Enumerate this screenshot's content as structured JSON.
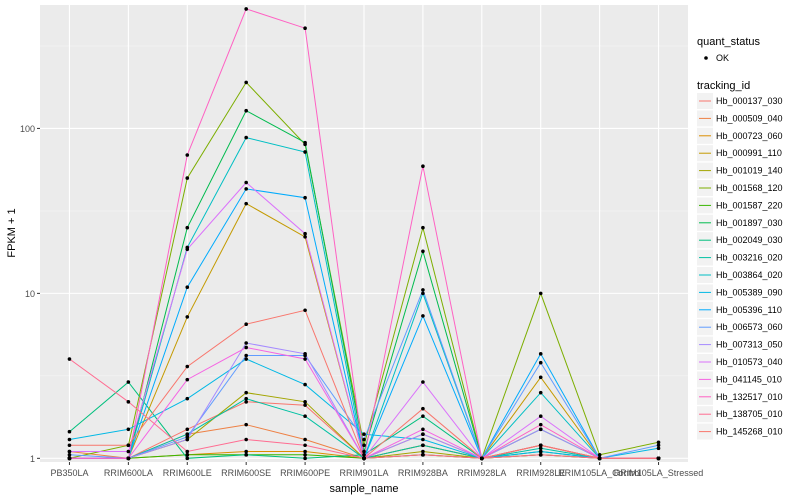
{
  "chart_data": {
    "type": "line",
    "xlabel": "sample_name",
    "ylabel": "FPKM + 1",
    "y_scale": "log10",
    "ylim": [
      0.95,
      560
    ],
    "y_ticks": [
      1,
      10,
      100
    ],
    "y_tick_labels": [
      "1",
      "10",
      "100"
    ],
    "categories": [
      "PB350LA",
      "RRIM600LA",
      "RRIM600LE",
      "RRIM600SE",
      "RRIM600PE",
      "RRIM901LA",
      "RRIM928BA",
      "RRIM928LA",
      "RRIM928LE",
      "RRIM105LA_Control",
      "RRIM105LA_Stressed"
    ],
    "background": "#EBEBEB",
    "grid": true,
    "legend_position": "right",
    "legend_shape": {
      "title": "quant_status",
      "items": [
        "OK"
      ]
    },
    "legend_color_title": "tracking_id",
    "point_color": "#000000",
    "series": [
      {
        "name": "Hb_000137_030",
        "color": "#F8766D",
        "values": [
          1.0,
          1.0,
          1.5,
          2.2,
          2.1,
          1.0,
          1.2,
          1.0,
          1.2,
          1.0,
          1.0
        ]
      },
      {
        "name": "Hb_000509_040",
        "color": "#EE8044",
        "values": [
          1.1,
          1.0,
          1.4,
          1.6,
          1.3,
          1.0,
          1.4,
          1.0,
          1.2,
          1.0,
          1.0
        ]
      },
      {
        "name": "Hb_000723_060",
        "color": "#DC8D00",
        "values": [
          1.0,
          1.0,
          1.05,
          1.1,
          1.1,
          1.0,
          1.05,
          1.0,
          1.05,
          1.0,
          1.0
        ]
      },
      {
        "name": "Hb_000991_110",
        "color": "#C49A00",
        "values": [
          1.0,
          1.0,
          7.2,
          35.0,
          22.0,
          1.0,
          1.2,
          1.0,
          3.1,
          1.0,
          1.0
        ]
      },
      {
        "name": "Hb_001019_140",
        "color": "#A3A500",
        "values": [
          1.0,
          1.0,
          1.3,
          2.5,
          2.2,
          1.0,
          1.1,
          1.0,
          1.2,
          1.0,
          1.0
        ]
      },
      {
        "name": "Hb_001568_120",
        "color": "#7CAE00",
        "values": [
          1.0,
          1.2,
          50.0,
          190.0,
          80.0,
          1.2,
          25.0,
          1.0,
          10.0,
          1.05,
          1.25
        ]
      },
      {
        "name": "Hb_001587_220",
        "color": "#39B600",
        "values": [
          1.0,
          1.0,
          1.05,
          1.05,
          1.05,
          1.0,
          1.05,
          1.0,
          1.05,
          1.0,
          1.0
        ]
      },
      {
        "name": "Hb_001897_030",
        "color": "#00BB4E",
        "values": [
          1.0,
          1.0,
          25.0,
          128.0,
          82.0,
          1.1,
          18.0,
          1.0,
          1.5,
          1.0,
          1.0
        ]
      },
      {
        "name": "Hb_002049_030",
        "color": "#00BF7D",
        "values": [
          1.45,
          2.9,
          1.0,
          1.05,
          1.0,
          1.05,
          1.8,
          1.0,
          1.1,
          1.0,
          1.0
        ]
      },
      {
        "name": "Hb_003216_020",
        "color": "#00C1A3",
        "values": [
          1.0,
          1.0,
          1.4,
          2.3,
          1.8,
          1.0,
          1.2,
          1.0,
          1.15,
          1.0,
          1.0
        ]
      },
      {
        "name": "Hb_003864_020",
        "color": "#00BFC4",
        "values": [
          1.0,
          1.0,
          19.0,
          88.0,
          72.0,
          1.0,
          10.0,
          1.0,
          2.5,
          1.0,
          1.0
        ]
      },
      {
        "name": "Hb_005389_090",
        "color": "#00B8E5",
        "values": [
          1.3,
          1.5,
          2.3,
          4.0,
          2.8,
          1.4,
          1.3,
          1.0,
          1.1,
          1.0,
          1.15
        ]
      },
      {
        "name": "Hb_005396_110",
        "color": "#00ABFD",
        "values": [
          1.0,
          1.0,
          10.9,
          43.0,
          38.0,
          1.0,
          7.3,
          1.0,
          4.3,
          1.0,
          1.0
        ]
      },
      {
        "name": "Hb_006573_060",
        "color": "#619CFF",
        "values": [
          1.05,
          1.0,
          1.35,
          4.2,
          4.2,
          1.3,
          10.5,
          1.0,
          3.8,
          1.0,
          1.2
        ]
      },
      {
        "name": "Hb_007313_050",
        "color": "#A58AFF",
        "values": [
          1.0,
          1.0,
          1.3,
          5.0,
          4.3,
          1.0,
          1.4,
          1.0,
          1.5,
          1.0,
          1.0
        ]
      },
      {
        "name": "Hb_010573_040",
        "color": "#DB72FB",
        "values": [
          1.1,
          1.1,
          18.5,
          47.0,
          23.0,
          1.0,
          2.9,
          1.0,
          1.8,
          1.0,
          1.0
        ]
      },
      {
        "name": "Hb_041145_010",
        "color": "#F564E3",
        "values": [
          1.0,
          1.0,
          3.0,
          4.7,
          4.0,
          1.0,
          1.5,
          1.0,
          1.2,
          1.0,
          1.0
        ]
      },
      {
        "name": "Hb_132517_010",
        "color": "#FF61C3",
        "values": [
          1.0,
          1.0,
          69.0,
          530.0,
          405.0,
          1.0,
          59.0,
          1.0,
          1.6,
          1.0,
          1.0
        ]
      },
      {
        "name": "Hb_138705_010",
        "color": "#FF6C91",
        "values": [
          4.0,
          2.2,
          1.1,
          1.3,
          1.2,
          1.0,
          1.05,
          1.0,
          1.05,
          1.0,
          1.0
        ]
      },
      {
        "name": "Hb_145268_010",
        "color": "#F8766D",
        "values": [
          1.2,
          1.2,
          3.6,
          6.5,
          7.9,
          1.0,
          2.0,
          1.0,
          1.2,
          1.0,
          1.0
        ]
      }
    ]
  }
}
